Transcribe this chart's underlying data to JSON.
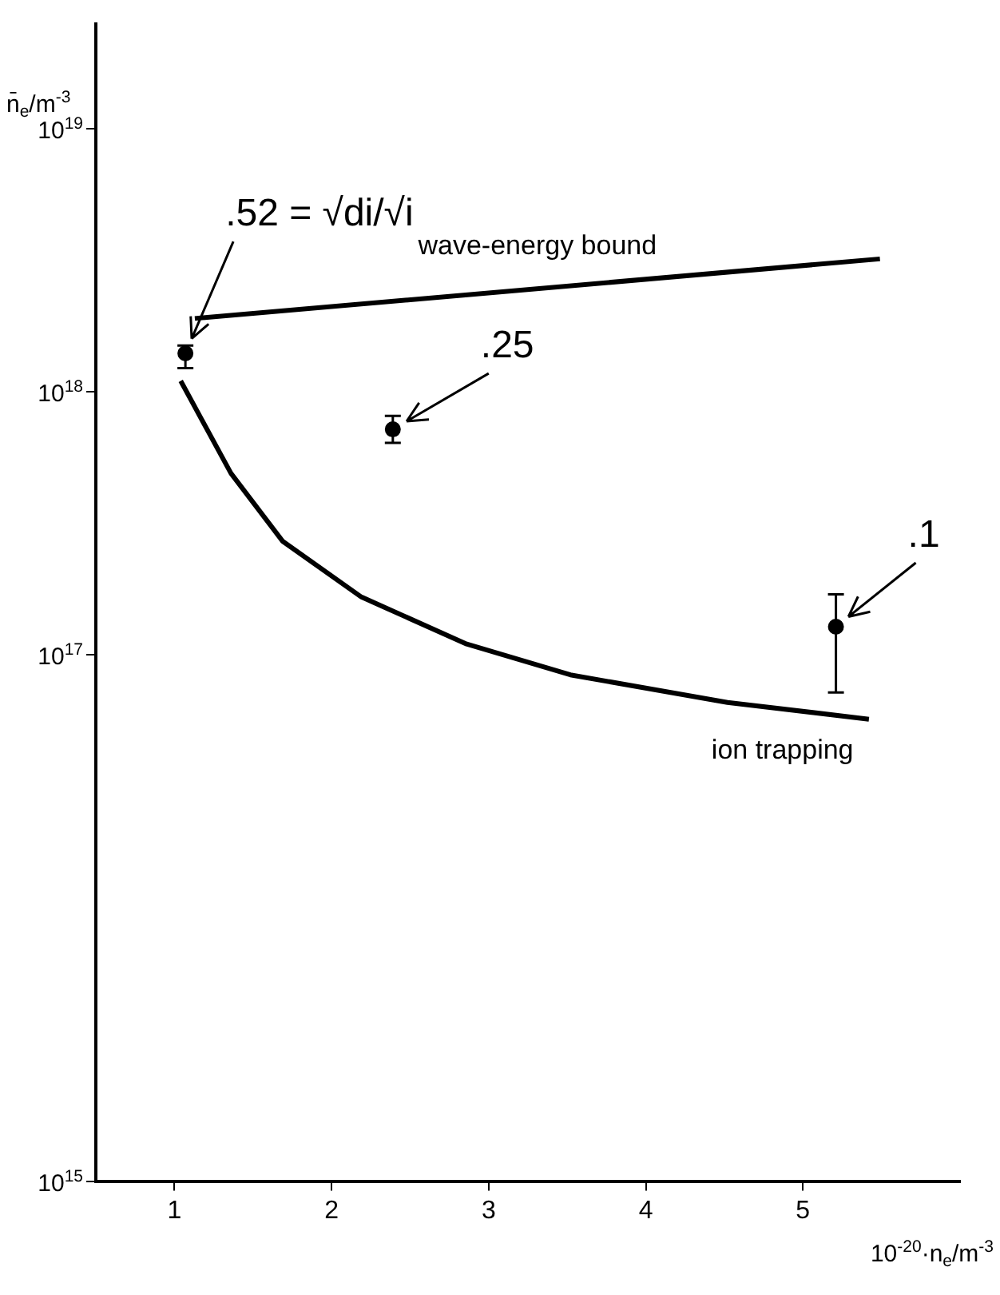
{
  "chart_data": {
    "type": "line",
    "xlabel": "10$^{-20}$·n$_{e}$/m$^{-3}$",
    "ylabel": "n̄$_{e}$/m$^{-3}$",
    "log": "y",
    "grid": false,
    "legend": false,
    "xlim": [
      0.5,
      6
    ],
    "xticks": [
      1,
      2,
      3,
      4,
      5
    ],
    "ylim": [
      1000000000000000.0,
      2.5e+19
    ],
    "yticks": [
      {
        "value": 1000000000000000.0,
        "label": "10$^{15}$"
      },
      {
        "value": 1e+17,
        "label": "10$^{17}$"
      },
      {
        "value": 1e+18,
        "label": "10$^{18}$"
      },
      {
        "value": 1e+19,
        "label": "10$^{19}$"
      }
    ],
    "series": [
      {
        "name": "wave-energy bound",
        "color": "#000000",
        "x": [
          1.13,
          5.49
        ],
        "values": [
          1.9e+18,
          3.2e+18
        ]
      },
      {
        "name": "ion trapping",
        "color": "#000000",
        "x": [
          1.04,
          1.36,
          1.69,
          2.19,
          2.86,
          3.52,
          4.52,
          5.42
        ],
        "values": [
          1.1e+18,
          4.9e+17,
          2.7e+17,
          1.66e+17,
          1.1e+17,
          8.4e+16,
          6.6e+16,
          5.7e+16
        ]
      },
      {
        "type": "scatter",
        "color": "#000000",
        "marker": "circle",
        "x": [
          1.07,
          2.39,
          5.21
        ],
        "values": [
          1.4e+18,
          7.2e+17,
          1.28e+17
        ],
        "errors": [
          [
            1.23e+18,
            1.5e+18
          ],
          [
            6.4e+17,
            8.1e+17
          ],
          [
            7.2e+16,
            1.7e+17
          ]
        ]
      }
    ],
    "annotations": [
      ".52 = √di/√i",
      {
        "text": ".25",
        "x": 2.39,
        "y": 7.2e+17
      },
      {
        "text": ".1",
        "x": 5.21,
        "y": 1.28e+17
      }
    ]
  }
}
